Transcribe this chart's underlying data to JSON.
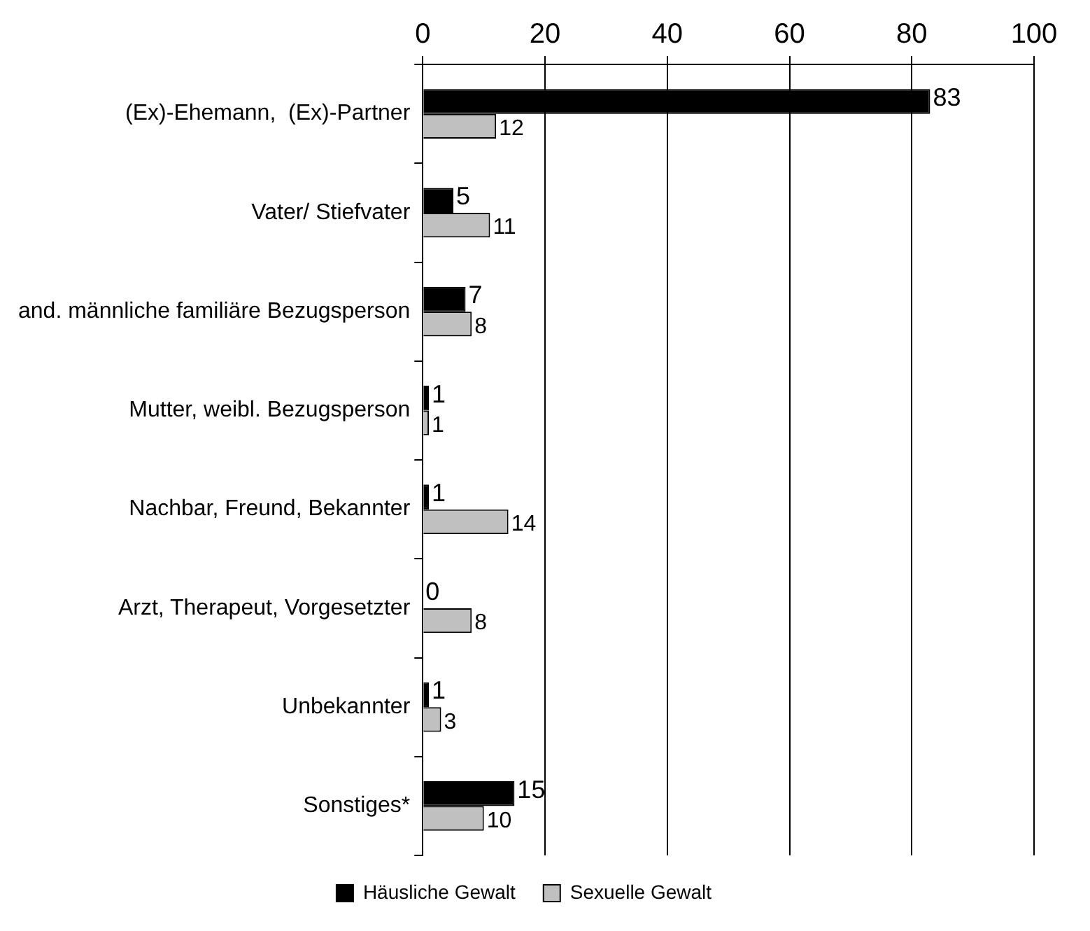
{
  "chart_data": {
    "type": "bar",
    "orientation": "horizontal",
    "categories": [
      "(Ex)-Ehemann,  (Ex)-Partner",
      "Vater/ Stiefvater",
      "and. männliche familiäre Bezugsperson",
      "Mutter, weibl. Bezugsperson",
      "Nachbar, Freund, Bekannter",
      "Arzt, Therapeut, Vorgesetzter",
      "Unbekannter",
      "Sonstiges*"
    ],
    "series": [
      {
        "name": "Häusliche Gewalt",
        "color": "#000000",
        "values": [
          83,
          5,
          7,
          1,
          1,
          0,
          1,
          15
        ]
      },
      {
        "name": "Sexuelle Gewalt",
        "color": "#c0c0c0",
        "values": [
          12,
          11,
          8,
          1,
          14,
          8,
          3,
          10
        ]
      }
    ],
    "xlim": [
      0,
      100
    ],
    "xticks": [
      0,
      20,
      40,
      60,
      80,
      100
    ],
    "grid": "x",
    "legend": "bottom",
    "data_labels": true
  }
}
